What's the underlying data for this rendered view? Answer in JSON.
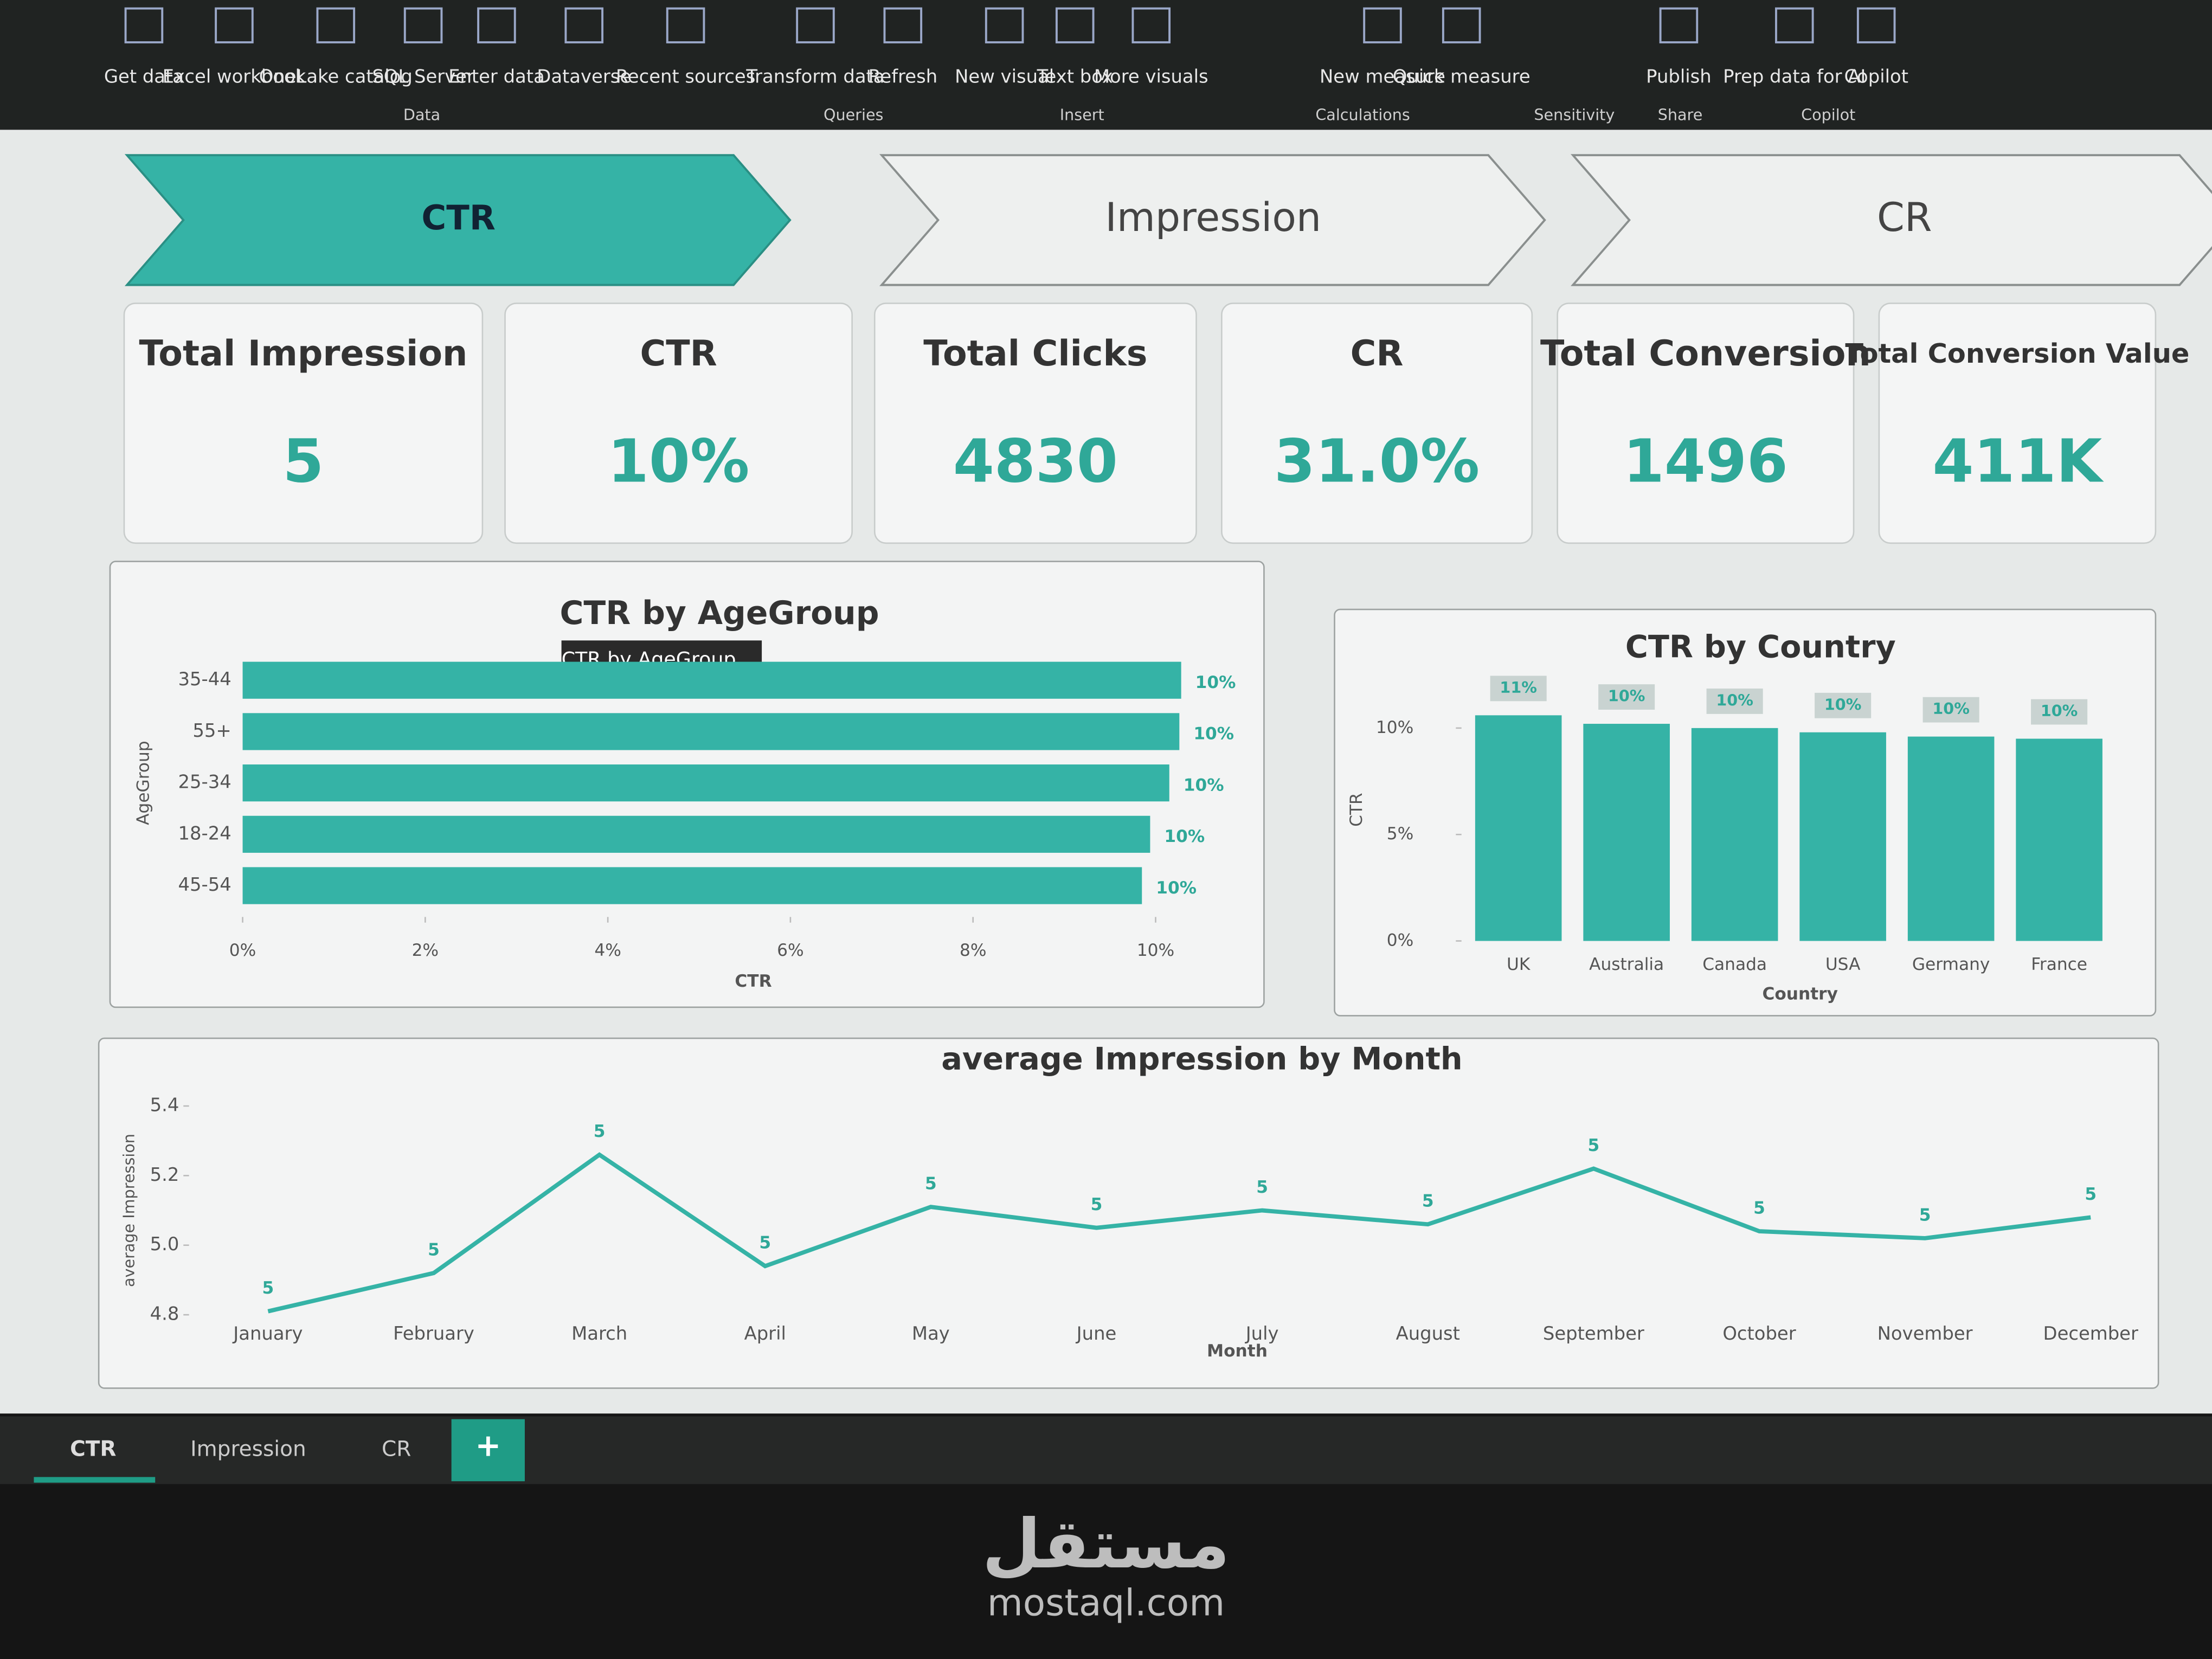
{
  "ribbon": {
    "items": [
      {
        "label": "Get data"
      },
      {
        "label": "Excel workbook"
      },
      {
        "label": "OneLake catalog"
      },
      {
        "label": "SQL Server"
      },
      {
        "label": "Enter data"
      },
      {
        "label": "Dataverse"
      },
      {
        "label": "Recent sources"
      },
      {
        "label": "Transform data"
      },
      {
        "label": "Refresh"
      },
      {
        "label": "New visual"
      },
      {
        "label": "Text box"
      },
      {
        "label": "More visuals"
      },
      {
        "label": "New measure"
      },
      {
        "label": "Quick measure"
      },
      {
        "label": "Publish"
      },
      {
        "label": "Prep data for AI"
      },
      {
        "label": "Copilot"
      }
    ],
    "groups": [
      "Data",
      "Queries",
      "Insert",
      "Calculations",
      "Sensitivity",
      "Share",
      "Copilot"
    ]
  },
  "nav": [
    "CTR",
    "Impression",
    "CR"
  ],
  "cards": [
    {
      "title": "Total Impression",
      "value": "5"
    },
    {
      "title": "CTR",
      "value": "10%"
    },
    {
      "title": "Total Clicks",
      "value": "4830"
    },
    {
      "title": "CR",
      "value": "31.0%"
    },
    {
      "title": "Total Conversion",
      "value": "1496"
    },
    {
      "title": "Total Conversion Value",
      "value": "411K"
    }
  ],
  "tooltip": "CTR by AgeGroup",
  "chart_data": [
    {
      "type": "hbar",
      "title": "CTR by AgeGroup",
      "x_label": "CTR",
      "y_label": "AgeGroup",
      "categories": [
        "35-44",
        "55+",
        "25-34",
        "18-24",
        "45-54"
      ],
      "values": [
        10.28,
        10.26,
        10.15,
        9.94,
        9.85
      ],
      "value_labels": [
        "10%",
        "10%",
        "10%",
        "10%",
        "10%"
      ],
      "color": "#35b3a6",
      "xlim": [
        0,
        10.6
      ],
      "xticks": [
        {
          "value": 0,
          "label": "0%"
        },
        {
          "value": 2,
          "label": "2%"
        },
        {
          "value": 4,
          "label": "4%"
        },
        {
          "value": 6,
          "label": "6%"
        },
        {
          "value": 8,
          "label": "8%"
        },
        {
          "value": 10,
          "label": "10%"
        }
      ]
    },
    {
      "type": "bar",
      "title": "CTR by Country",
      "x_label": "Country",
      "y_label": "CTR",
      "categories": [
        "UK",
        "Australia",
        "Canada",
        "USA",
        "Germany",
        "France"
      ],
      "values": [
        10.6,
        10.2,
        10.0,
        9.8,
        9.6,
        9.5
      ],
      "value_labels": [
        "11%",
        "10%",
        "10%",
        "10%",
        "10%",
        "10%"
      ],
      "color": "#35b3a6",
      "ylim": [
        0,
        11
      ],
      "yticks": [
        {
          "value": 0,
          "label": "0%"
        },
        {
          "value": 5,
          "label": "5%"
        },
        {
          "value": 10,
          "label": "10%"
        }
      ]
    },
    {
      "type": "line",
      "title": "average Impression by Month",
      "x_label": "Month",
      "y_label": "average Impression",
      "categories": [
        "January",
        "February",
        "March",
        "April",
        "May",
        "June",
        "July",
        "August",
        "September",
        "October",
        "November",
        "December"
      ],
      "values": [
        4.81,
        4.92,
        5.26,
        4.94,
        5.11,
        5.05,
        5.1,
        5.06,
        5.22,
        5.04,
        5.02,
        5.08
      ],
      "value_labels": [
        "5",
        "5",
        "5",
        "5",
        "5",
        "5",
        "5",
        "5",
        "5",
        "5",
        "5",
        "5"
      ],
      "color": "#35b3a6",
      "ylim": [
        4.8,
        5.4
      ],
      "yticks": [
        4.8,
        {
          "value": 5,
          "label": "5.0"
        },
        5.2,
        5.4
      ]
    }
  ],
  "tabs": [
    "CTR",
    "Impression",
    "CR"
  ],
  "watermark": {
    "arabic": "مستقل",
    "latin": "mostaql.com"
  }
}
